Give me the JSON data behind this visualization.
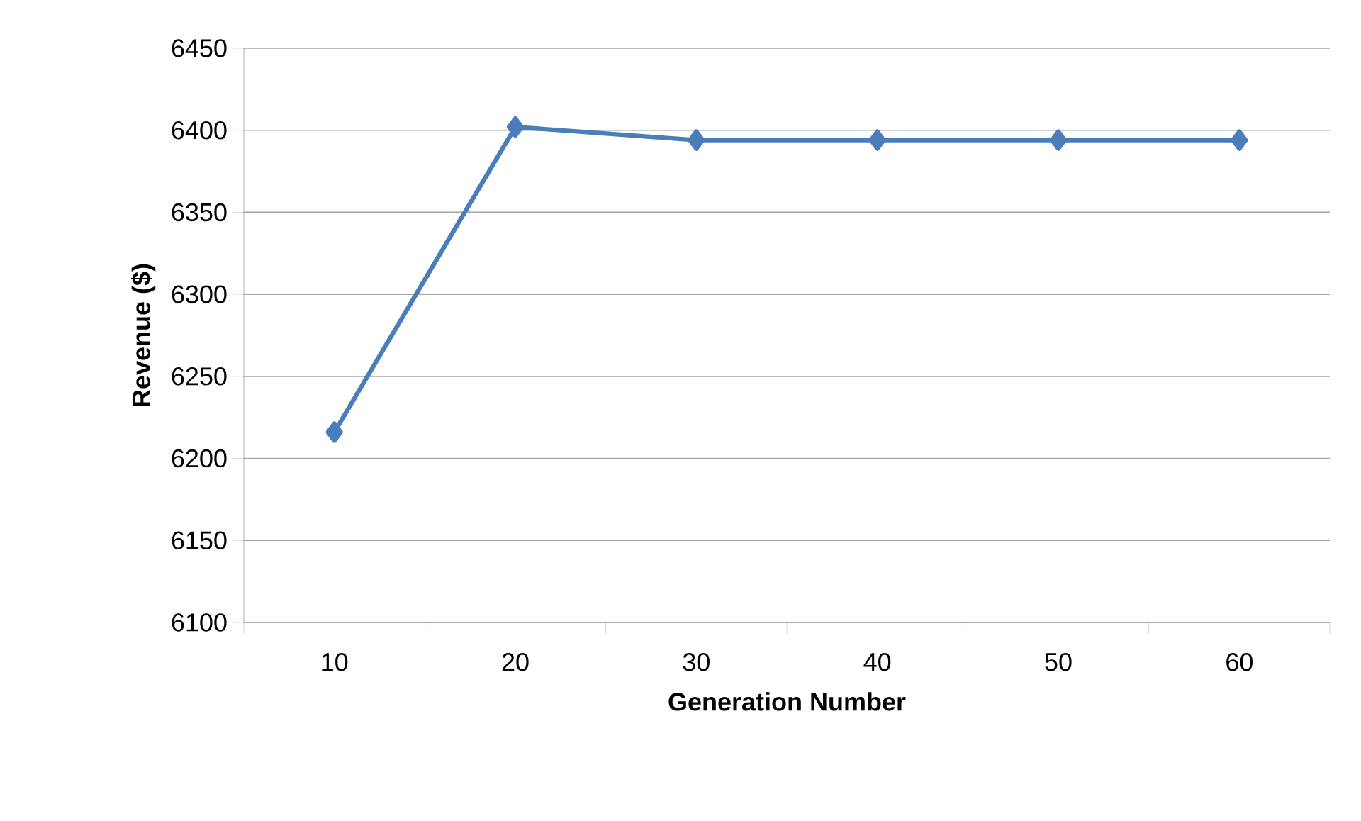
{
  "chart_data": {
    "type": "line",
    "xlabel": "Generation Number",
    "ylabel": "Revenue ($)",
    "categories": [
      "10",
      "20",
      "30",
      "40",
      "50",
      "60"
    ],
    "series": [
      {
        "color": "#4a7ebb",
        "values": [
          6216,
          6402,
          6394,
          6394,
          6394,
          6394
        ]
      }
    ],
    "ylim": [
      6100,
      6450
    ],
    "yticks": [
      6100,
      6150,
      6200,
      6250,
      6300,
      6350,
      6400,
      6450
    ],
    "grid": "y",
    "marker": "diamond",
    "line_style": "solid"
  }
}
